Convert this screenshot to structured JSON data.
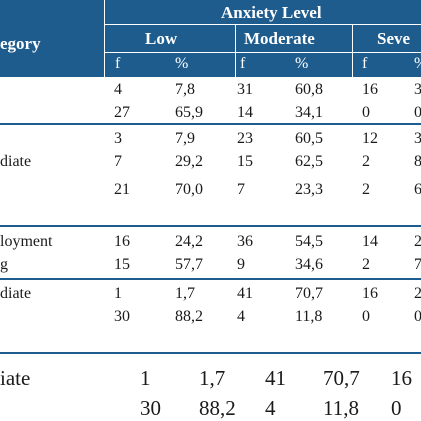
{
  "header": {
    "category_label": "egory",
    "anxiety_label": "Anxiety Level",
    "levels": [
      "Low",
      "Moderate",
      "Seve"
    ],
    "sub": [
      "f",
      "%",
      "f",
      "%",
      "f",
      "%"
    ]
  },
  "rows": [
    {
      "cat": "",
      "v": [
        "4",
        "7,8",
        "31",
        "60,8",
        "16",
        "3"
      ]
    },
    {
      "cat": "",
      "v": [
        "27",
        "65,9",
        "14",
        "34,1",
        "0",
        "0"
      ]
    },
    {
      "cat": "",
      "v": [
        "3",
        "7,9",
        "23",
        "60,5",
        "12",
        "3"
      ]
    },
    {
      "cat": "diate",
      "v": [
        "7",
        "29,2",
        "15",
        "62,5",
        "2",
        "8"
      ]
    },
    {
      "cat": "",
      "v": [
        "21",
        "70,0",
        "7",
        "23,3",
        "2",
        "6"
      ]
    },
    {
      "cat": "loyment",
      "v": [
        "16",
        "24,2",
        "36",
        "54,5",
        "14",
        "2"
      ]
    },
    {
      "cat": "g",
      "v": [
        "15",
        "57,7",
        "9",
        "34,6",
        "2",
        "7"
      ]
    },
    {
      "cat": "diate",
      "v": [
        "1",
        "1,7",
        "41",
        "70,7",
        "16",
        "2"
      ]
    },
    {
      "cat": "",
      "v": [
        "30",
        "88,2",
        "4",
        "11,8",
        "0",
        "0"
      ]
    }
  ],
  "zoom_rows": [
    {
      "cat": "iate",
      "v": [
        "1",
        "1,7",
        "41",
        "70,7",
        "16"
      ]
    },
    {
      "cat": "",
      "v": [
        "30",
        "88,2",
        "4",
        "11,8",
        "0"
      ]
    }
  ]
}
